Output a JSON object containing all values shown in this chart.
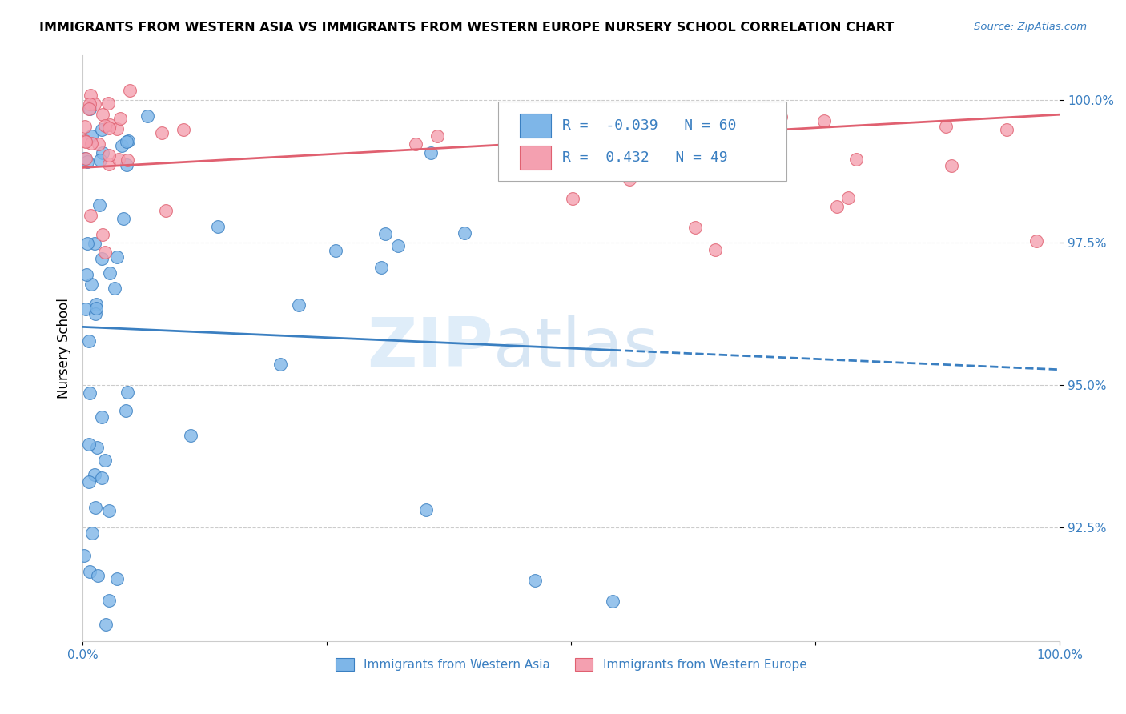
{
  "title": "IMMIGRANTS FROM WESTERN ASIA VS IMMIGRANTS FROM WESTERN EUROPE NURSERY SCHOOL CORRELATION CHART",
  "source": "Source: ZipAtlas.com",
  "ylabel": "Nursery School",
  "ytick_labels": [
    "100.0%",
    "97.5%",
    "95.0%",
    "92.5%"
  ],
  "ytick_values": [
    1.0,
    0.975,
    0.95,
    0.925
  ],
  "xlim": [
    0.0,
    1.0
  ],
  "ylim": [
    0.905,
    1.008
  ],
  "R_blue": -0.039,
  "N_blue": 60,
  "R_pink": 0.432,
  "N_pink": 49,
  "legend_label_blue": "Immigrants from Western Asia",
  "legend_label_pink": "Immigrants from Western Europe",
  "blue_color": "#7eb6e8",
  "pink_color": "#f4a0b0",
  "blue_line_color": "#3a7fc1",
  "pink_line_color": "#e06070",
  "watermark_zip": "ZIP",
  "watermark_atlas": "atlas",
  "background_color": "#ffffff",
  "grid_color": "#cccccc"
}
